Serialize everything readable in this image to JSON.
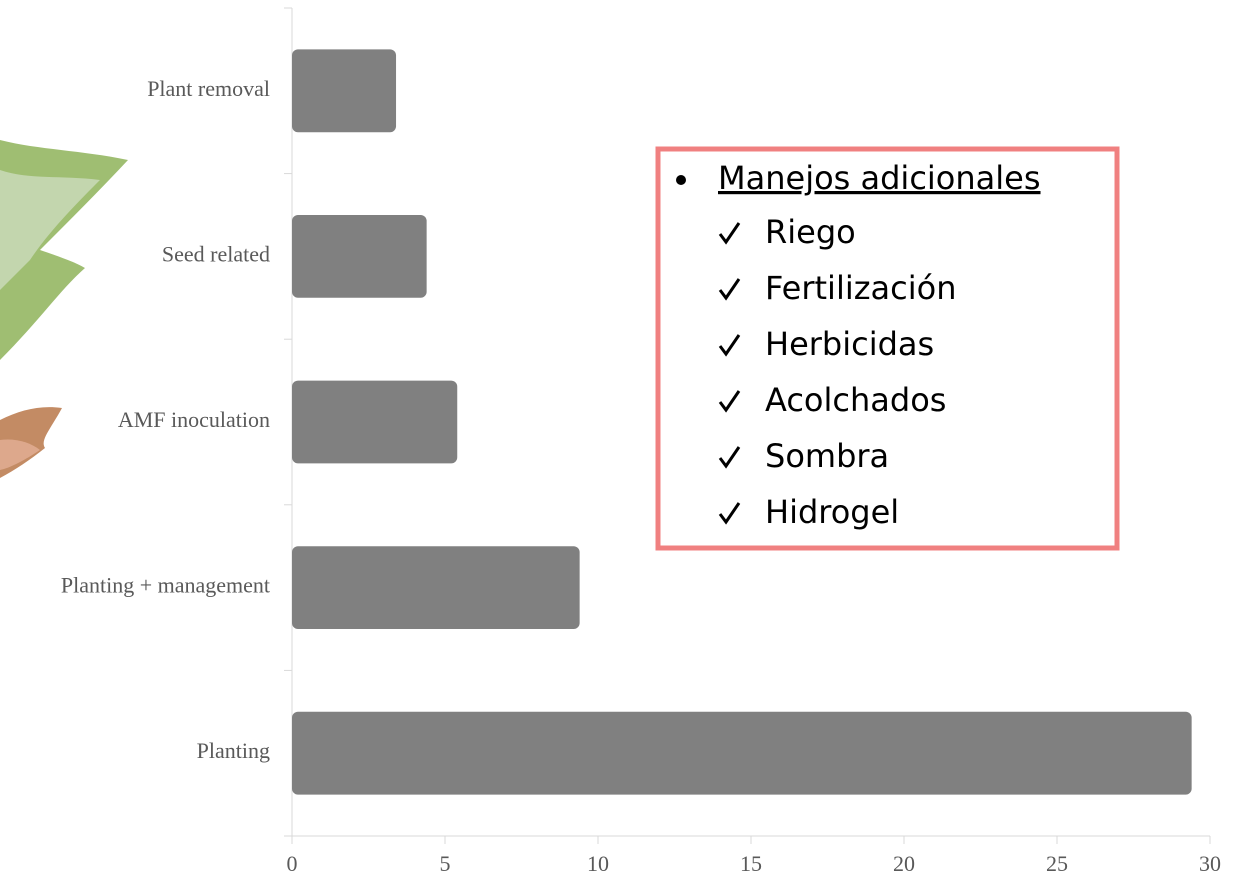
{
  "chart_data": {
    "type": "bar",
    "orientation": "horizontal",
    "categories": [
      "Plant removal",
      "Seed related",
      "AMF inoculation",
      "Planting + management",
      "Planting"
    ],
    "values": [
      3.4,
      4.4,
      5.4,
      9.4,
      29.4
    ],
    "color": "#808080",
    "xlim": [
      0,
      30
    ],
    "xticks": [
      0,
      5,
      10,
      15,
      20,
      25,
      30
    ],
    "grid": false,
    "annotation": {
      "title": "Manejos adicionales",
      "items": [
        "Riego",
        "Fertilización",
        "Herbicidas",
        "Acolchados",
        "Sombra",
        "Hidrogel"
      ]
    }
  }
}
